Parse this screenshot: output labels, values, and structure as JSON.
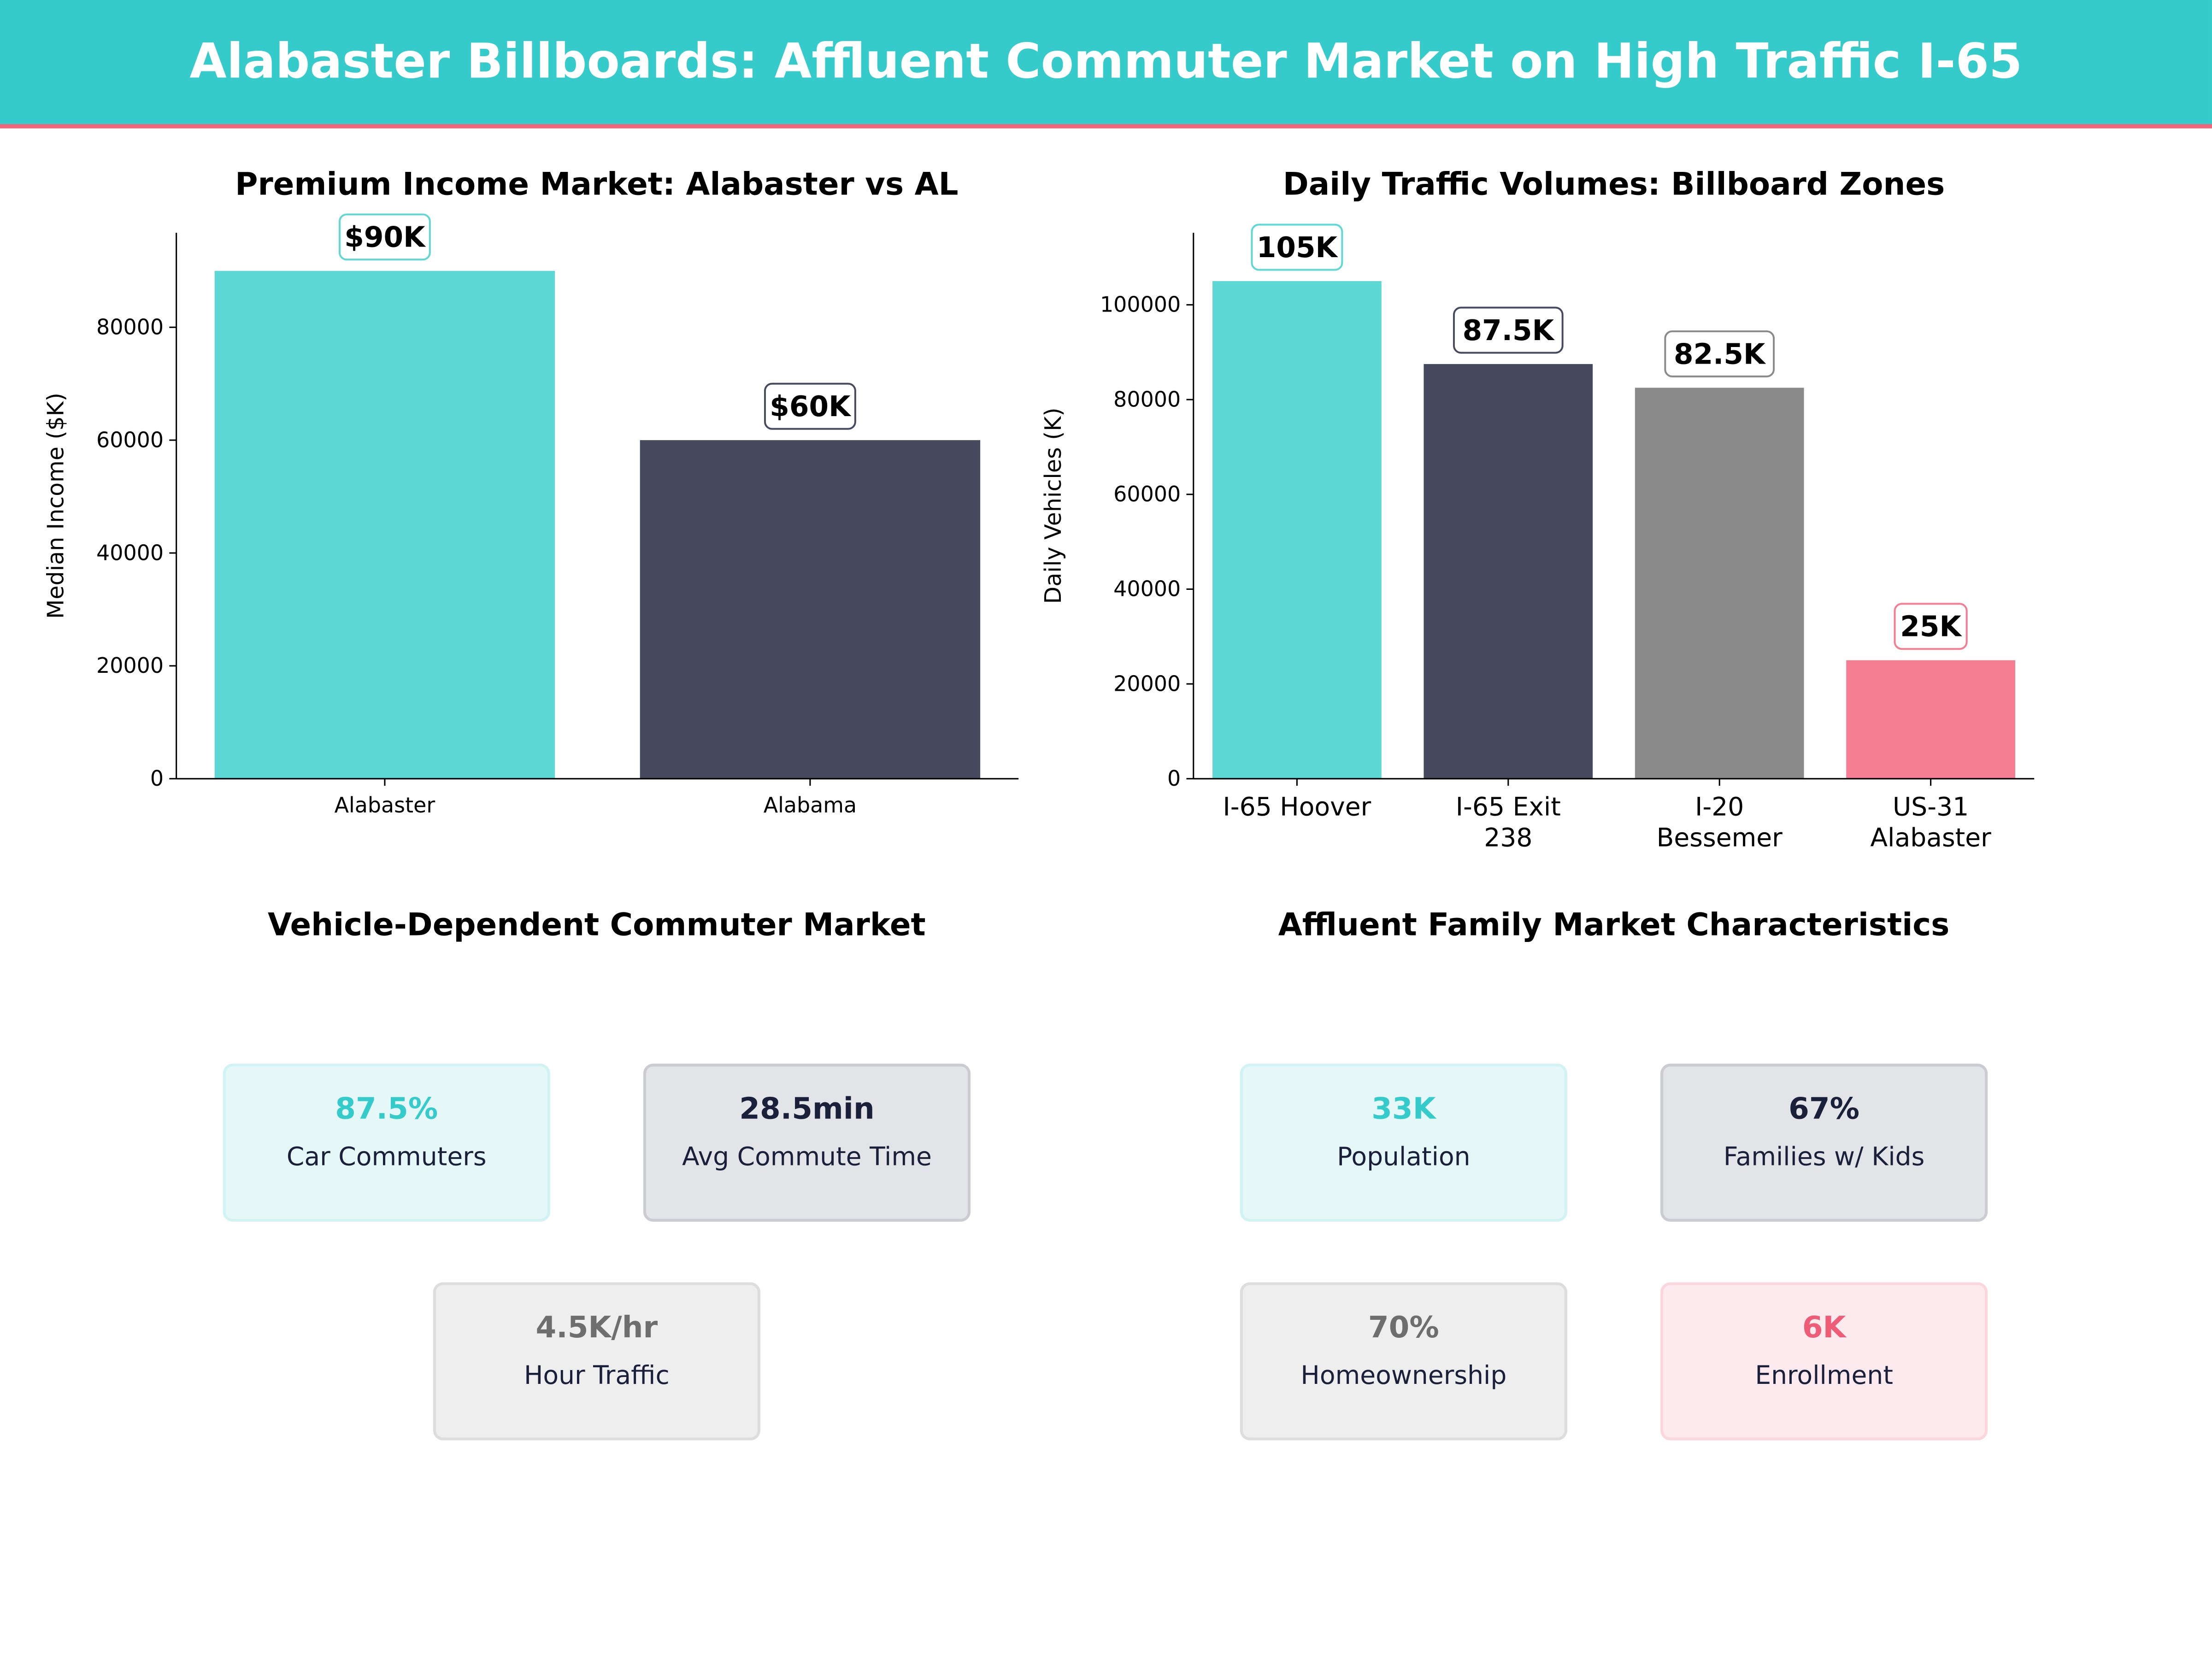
{
  "header": {
    "title": "Alabaster Billboards: Affluent Commuter Market on High Traffic I-65"
  },
  "colors": {
    "teal": "#5DD8D4",
    "navy": "#464A5E",
    "gray": "#8A8A8A",
    "pink": "#F47D92",
    "header": "#36CBCB",
    "accent_line": "#F0657A"
  },
  "chart_data": [
    {
      "type": "bar",
      "title": "Premium Income Market: Alabaster vs AL",
      "xlabel": "",
      "ylabel": "Median Income ($K)",
      "categories": [
        "Alabaster",
        "Alabama"
      ],
      "values": [
        90000,
        60000
      ],
      "data_labels": [
        "$90K",
        "$60K"
      ],
      "bar_colors": [
        "#5DD8D4",
        "#464A5E"
      ],
      "ylim": [
        0,
        96750
      ],
      "yticks": [
        0,
        20000,
        40000,
        60000,
        80000
      ],
      "grid": false
    },
    {
      "type": "bar",
      "title": "Daily Traffic Volumes: Billboard Zones",
      "xlabel": "",
      "ylabel": "Daily Vehicles (K)",
      "categories": [
        [
          "I-65 Hoover"
        ],
        [
          "I-65 Exit",
          "238"
        ],
        [
          "I-20",
          "Bessemer"
        ],
        [
          "US-31",
          "Alabaster"
        ]
      ],
      "values": [
        105000,
        87500,
        82500,
        25000
      ],
      "data_labels": [
        "105K",
        "87.5K",
        "82.5K",
        "25K"
      ],
      "bar_colors": [
        "#5DD8D4",
        "#464A5E",
        "#8A8A8A",
        "#F47D92"
      ],
      "ylim": [
        0,
        115200
      ],
      "yticks": [
        0,
        20000,
        40000,
        60000,
        80000,
        100000
      ],
      "grid": false
    }
  ],
  "commuter": {
    "title": "Vehicle-Dependent Commuter Market",
    "cards": [
      {
        "value": "87.5%",
        "label": "Car Commuters",
        "theme": "teal"
      },
      {
        "value": "28.5min",
        "label": "Avg Commute Time",
        "theme": "navy"
      },
      {
        "value": "4.5K/hr",
        "label": "Hour Traffic",
        "theme": "gray"
      }
    ]
  },
  "family": {
    "title": "Affluent Family Market Characteristics",
    "cards": [
      {
        "value": "33K",
        "label": "Population",
        "theme": "teal"
      },
      {
        "value": "67%",
        "label": "Families w/ Kids",
        "theme": "navy"
      },
      {
        "value": "70%",
        "label": "Homeownership",
        "theme": "gray"
      },
      {
        "value": "6K",
        "label": "Enrollment",
        "theme": "pink"
      }
    ]
  },
  "card_themes": {
    "teal": {
      "bg": "#E6F7F7",
      "border": "#D2F3F3",
      "text": "#36CBCB"
    },
    "navy": {
      "bg": "#E3E4E8",
      "border": "#CBCCD2",
      "text": "#1A1F3A"
    },
    "gray": {
      "bg": "#EEEEEE",
      "border": "#DDDDDD",
      "text": "#6E6E6E"
    },
    "pink": {
      "bg": "#FDEAEE",
      "border": "#FAD6DD",
      "text": "#EF5C78"
    }
  }
}
